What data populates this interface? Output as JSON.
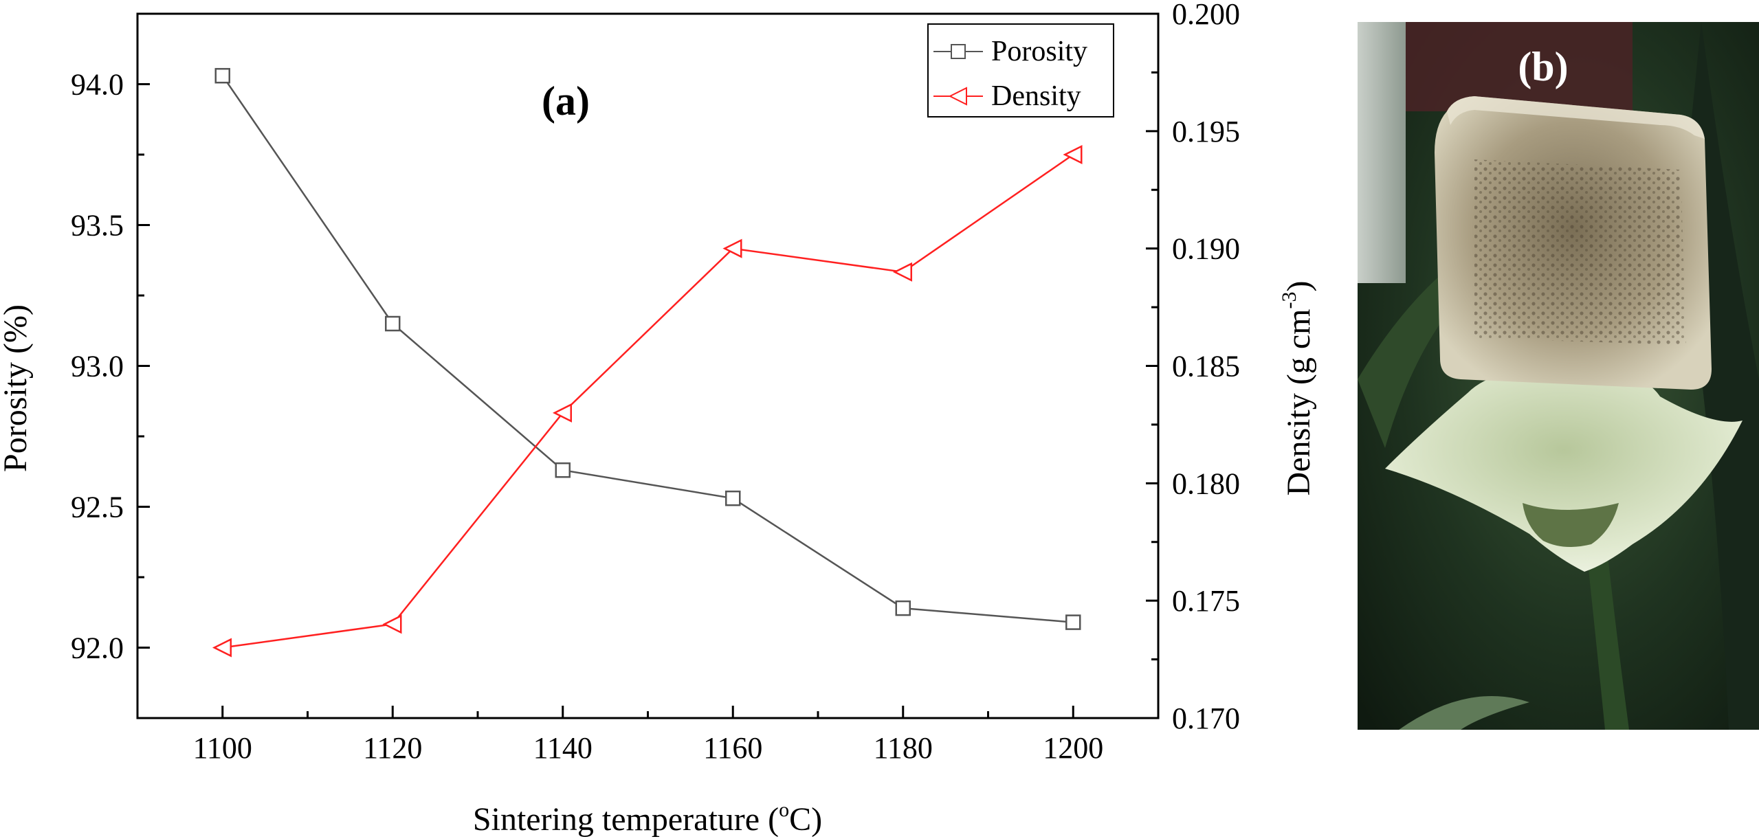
{
  "chart_data": {
    "panel_label": "(a)",
    "type": "line",
    "x": [
      1100,
      1120,
      1140,
      1160,
      1180,
      1200
    ],
    "xlabel": "Sintering temperature (",
    "xlabel_sup": "o",
    "xlabel_tail": "C)",
    "xlim": [
      1090,
      1210
    ],
    "xticks": [
      "1100",
      "1120",
      "1140",
      "1160",
      "1180",
      "1200"
    ],
    "ylabel_left": "Porosity (%)",
    "ylim_left": [
      91.75,
      94.25
    ],
    "yticks_left": [
      "92.0",
      "92.5",
      "93.0",
      "93.5",
      "94.0"
    ],
    "ylabel_right": "Density (g cm",
    "ylabel_right_sup": "-3",
    "ylabel_right_tail": ")",
    "ylim_right": [
      0.17,
      0.2
    ],
    "yticks_right": [
      "0.170",
      "0.175",
      "0.180",
      "0.185",
      "0.190",
      "0.195",
      "0.200"
    ],
    "grid": false,
    "legend_placement": "top-right",
    "series": [
      {
        "name": "Porosity",
        "axis": "left",
        "marker": "square",
        "color": "#555555",
        "values": [
          94.03,
          93.15,
          92.63,
          92.53,
          92.14,
          92.09
        ]
      },
      {
        "name": "Density",
        "axis": "right",
        "marker": "triangle-left",
        "color": "#ff2020",
        "values": [
          0.173,
          0.174,
          0.183,
          0.19,
          0.189,
          0.194
        ]
      }
    ]
  },
  "photo": {
    "panel_label": "(b)"
  }
}
